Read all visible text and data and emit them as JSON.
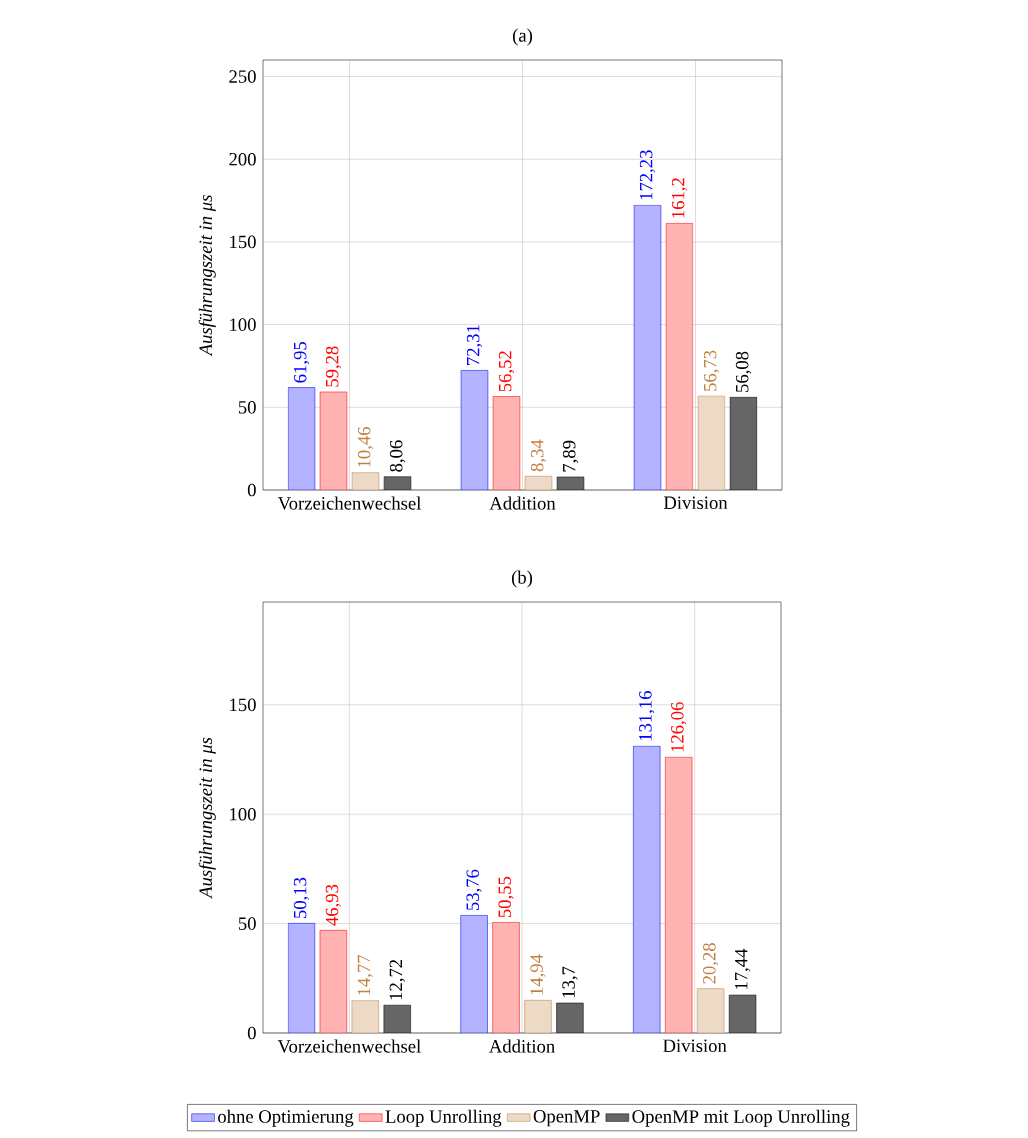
{
  "chart_data": [
    {
      "type": "bar",
      "title": "(a)",
      "ylabel": "Ausführungszeit in μs",
      "categories": [
        "Vorzeichenwechsel",
        "Addition",
        "Division"
      ],
      "ylim": [
        0,
        260
      ],
      "yticks": [
        0,
        50,
        100,
        150,
        200,
        250
      ],
      "grid": true,
      "series": [
        {
          "color": "#b3b3ff",
          "values": [
            61.95,
            72.31,
            172.23
          ],
          "value_labels": [
            "61,95",
            "72,31",
            "172,23"
          ]
        },
        {
          "color": "#ffb3b3",
          "values": [
            59.28,
            56.52,
            161.2
          ],
          "value_labels": [
            "59,28",
            "56,52",
            "161,2"
          ]
        },
        {
          "color": "#ecd9c6",
          "values": [
            10.46,
            8.34,
            56.73
          ],
          "value_labels": [
            "10,46",
            "8,34",
            "56,73"
          ]
        },
        {
          "color": "#666666",
          "values": [
            8.06,
            7.89,
            56.08
          ],
          "value_labels": [
            "8,06",
            "7,89",
            "56,08"
          ]
        }
      ]
    },
    {
      "type": "bar",
      "title": "(b)",
      "ylabel": "Ausführungszeit in μs",
      "categories": [
        "Vorzeichenwechsel",
        "Addition",
        "Division"
      ],
      "ylim": [
        0,
        197
      ],
      "yticks": [
        0,
        50,
        100,
        150
      ],
      "grid": true,
      "legend": "bottom",
      "series": [
        {
          "name": "ohne Optimierung",
          "color": "#b3b3ff",
          "values": [
            50.13,
            53.76,
            131.16
          ],
          "value_labels": [
            "50,13",
            "53,76",
            "131,16"
          ]
        },
        {
          "name": "Loop Unrolling",
          "color": "#ffb3b3",
          "values": [
            46.93,
            50.55,
            126.06
          ],
          "value_labels": [
            "46,93",
            "50,55",
            "126,06"
          ]
        },
        {
          "name": "OpenMP",
          "color": "#ecd9c6",
          "values": [
            14.77,
            14.94,
            20.28
          ],
          "value_labels": [
            "14,77",
            "14,94",
            "20,28"
          ]
        },
        {
          "name": "OpenMP mit Loop Unrolling",
          "color": "#666666",
          "values": [
            12.72,
            13.7,
            17.44
          ],
          "value_labels": [
            "12,72",
            "13,7",
            "17,44"
          ]
        }
      ]
    }
  ]
}
